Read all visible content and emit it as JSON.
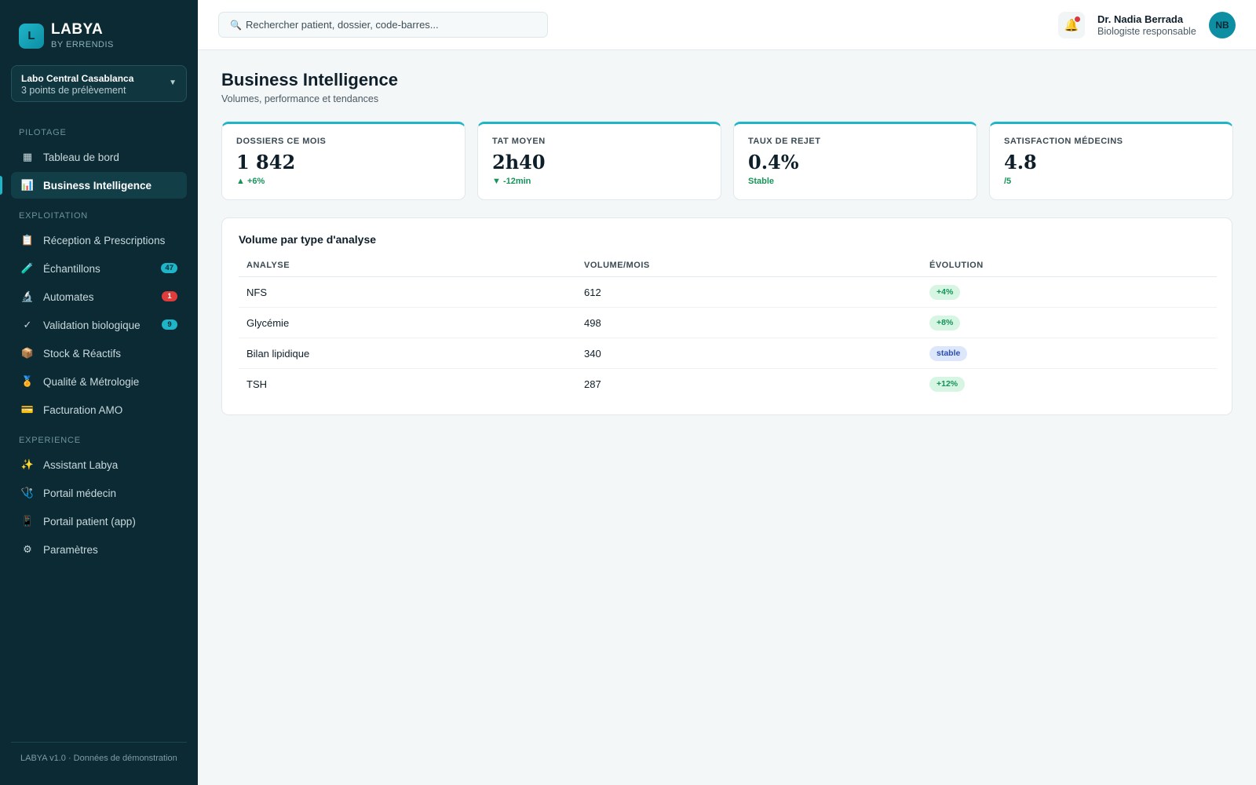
{
  "brand": {
    "logo_letter": "L",
    "name": "LABYA",
    "sub": "BY ERRENDIS"
  },
  "site": {
    "name": "Labo Central Casablanca",
    "sub": "3 points de prélèvement"
  },
  "sidebar": {
    "sections": [
      "PILOTAGE",
      "EXPLOITATION",
      "EXPERIENCE"
    ],
    "items": [
      {
        "label": "Tableau de bord",
        "icon": "grid-icon"
      },
      {
        "label": "Business Intelligence",
        "icon": "bar-chart-icon"
      },
      {
        "label": "Réception & Prescriptions",
        "icon": "clipboard-icon"
      },
      {
        "label": "Échantillons",
        "icon": "test-tube-icon",
        "badge": "47"
      },
      {
        "label": "Automates",
        "icon": "microscope-icon",
        "badge": "1"
      },
      {
        "label": "Validation biologique",
        "icon": "check-icon",
        "badge": "9"
      },
      {
        "label": "Stock & Réactifs",
        "icon": "package-icon"
      },
      {
        "label": "Qualité & Métrologie",
        "icon": "medal-icon"
      },
      {
        "label": "Facturation AMO",
        "icon": "credit-card-icon"
      },
      {
        "label": "Assistant Labya",
        "icon": "sparkles-icon"
      },
      {
        "label": "Portail médecin",
        "icon": "stethoscope-icon"
      },
      {
        "label": "Portail patient (app)",
        "icon": "phone-icon"
      },
      {
        "label": "Paramètres",
        "icon": "gear-icon"
      }
    ],
    "footer": "LABYA v1.0 · Données de démonstration"
  },
  "topbar": {
    "search_placeholder": "Rechercher patient, dossier, code-barres...",
    "user_name": "Dr. Nadia Berrada",
    "user_role": "Biologiste responsable",
    "avatar_initials": "NB"
  },
  "page": {
    "title": "Business Intelligence",
    "subtitle": "Volumes, performance et tendances"
  },
  "kpis": [
    {
      "label": "DOSSIERS CE MOIS",
      "value": "1 842",
      "delta": "▲ +6%"
    },
    {
      "label": "TAT MOYEN",
      "value": "2h40",
      "delta": "▼ -12min"
    },
    {
      "label": "TAUX DE REJET",
      "value": "0.4%",
      "delta": "Stable"
    },
    {
      "label": "SATISFACTION MÉDECINS",
      "value": "4.8",
      "delta": "/5"
    }
  ],
  "table": {
    "title": "Volume par type d'analyse",
    "headers": [
      "ANALYSE",
      "VOLUME/MOIS",
      "ÉVOLUTION"
    ],
    "rows": [
      {
        "analyse": "NFS",
        "volume": "612",
        "evolution": "+4%"
      },
      {
        "analyse": "Glycémie",
        "volume": "498",
        "evolution": "+8%"
      },
      {
        "analyse": "Bilan lipidique",
        "volume": "340",
        "evolution": "stable"
      },
      {
        "analyse": "TSH",
        "volume": "287",
        "evolution": "+12%"
      }
    ]
  },
  "colors": {
    "sidebar_bg": "#0b2a33",
    "accent": "#1fb5c9",
    "positive": "#17935a",
    "alert": "#e23b3b"
  }
}
